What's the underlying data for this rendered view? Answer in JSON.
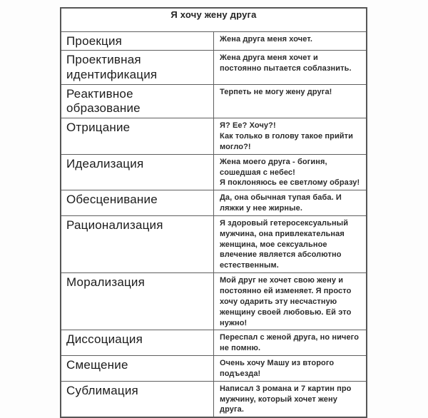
{
  "title": "Я хочу жену друга",
  "colors": {
    "background": "#fdfdfd",
    "table_background": "#ffffff",
    "border": "#5f5f5f",
    "text": "#1f1f1f"
  },
  "rows": [
    {
      "term": "Проекция",
      "description": "Жена друга меня хочет."
    },
    {
      "term": "Проективная идентификация",
      "description": "Жена друга меня хочет и постоянно пытается соблазнить."
    },
    {
      "term": "Реактивное образование",
      "description": "Терпеть не могу жену друга!"
    },
    {
      "term": "Отрицание",
      "description": "Я? Ее? Хочу?!\nКак только в голову такое прийти могло?!"
    },
    {
      "term": "Идеализация",
      "description": "Жена моего друга - богиня, сошедшая с небес!\nЯ поклоняюсь ее светлому образу!"
    },
    {
      "term": "Обесценивание",
      "description": "Да, она обычная тупая баба. И ляжки у нее жирные."
    },
    {
      "term": "Рационализация",
      "description": "Я здоровый гетеросексуальный мужчина, она привлекательная женщина, мое сексуальное влечение является абсолютно естественным."
    },
    {
      "term": "Морализация",
      "description": "Мой друг не хочет свою жену и постоянно ей изменяет. Я просто хочу одарить эту несчастную женщину своей любовью. Ей это нужно!"
    },
    {
      "term": "Диссоциация",
      "description": "Переспал с женой друга, но ничего не помню."
    },
    {
      "term": "Смещение",
      "description": "Очень хочу Машу из второго подъезда!"
    },
    {
      "term": "Сублимация",
      "description": "Написал 3 романа и 7 картин про мужчину, который хочет жену друга."
    }
  ]
}
